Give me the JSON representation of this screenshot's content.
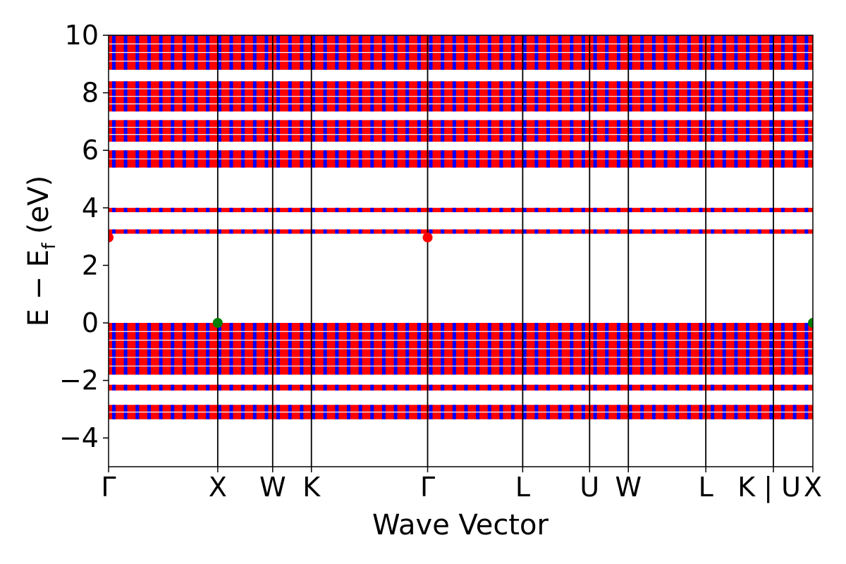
{
  "chart_data": {
    "type": "line",
    "title": "",
    "xlabel": "Wave Vector",
    "ylabel": "E − E_f (eV)",
    "ylabel_main": "E − E",
    "ylabel_sub": "f",
    "ylabel_unit": " (eV)",
    "ylim": [
      -5,
      10
    ],
    "yticks": [
      -4,
      -2,
      0,
      2,
      4,
      6,
      8,
      10
    ],
    "ytick_labels": [
      "−4",
      "−2",
      "0",
      "2",
      "4",
      "6",
      "8",
      "10"
    ],
    "xlim": [
      0,
      1
    ],
    "kpath": [
      {
        "label": "Γ",
        "pos": 0.0
      },
      {
        "label": "X",
        "pos": 0.155
      },
      {
        "label": "W",
        "pos": 0.233
      },
      {
        "label": "K",
        "pos": 0.288
      },
      {
        "label": "Γ",
        "pos": 0.453
      },
      {
        "label": "L",
        "pos": 0.588
      },
      {
        "label": "U",
        "pos": 0.683
      },
      {
        "label": "W",
        "pos": 0.738
      },
      {
        "label": "L",
        "pos": 0.848
      },
      {
        "label": "K | U",
        "pos": 0.944
      },
      {
        "label": "X",
        "pos": 1.0
      }
    ],
    "series": [
      {
        "color_a": "#ff0000",
        "color_b": "#0000ff",
        "band_groups": [
          {
            "min": -3.35,
            "max": -2.85
          },
          {
            "min": -2.35,
            "max": -2.15
          },
          {
            "min": -1.8,
            "max": 0.0
          },
          {
            "min": 3.1,
            "max": 3.25
          },
          {
            "min": 3.85,
            "max": 4.0
          },
          {
            "min": 5.4,
            "max": 6.0
          },
          {
            "min": 6.3,
            "max": 7.05
          },
          {
            "min": 7.35,
            "max": 8.4
          },
          {
            "min": 8.8,
            "max": 10.0
          }
        ]
      }
    ],
    "markers": [
      {
        "type": "CBM",
        "color": "#ff0000",
        "points": [
          {
            "x": 0.0,
            "y": 2.97
          },
          {
            "x": 0.453,
            "y": 2.97
          }
        ]
      },
      {
        "type": "VBM",
        "color": "#008000",
        "points": [
          {
            "x": 0.155,
            "y": 0.0
          },
          {
            "x": 1.0,
            "y": 0.0
          }
        ]
      }
    ],
    "grid": false,
    "legend": "none"
  }
}
